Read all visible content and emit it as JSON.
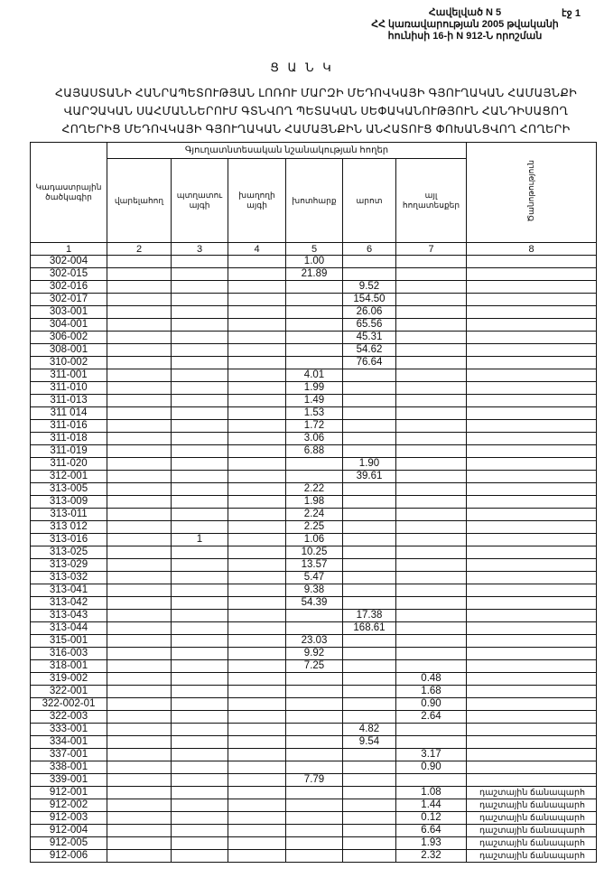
{
  "header": {
    "appendix": "Հավելված N 5",
    "line2": "ՀՀ կառավարության 2005 թվականի",
    "line3": "հունիսի 16-ի N 912-Ն որոշման",
    "page": "էջ 1"
  },
  "doc_title": "Ց Ա Ն Կ",
  "subtitle": [
    "ՀԱՅԱՍՏԱՆԻ ՀԱՆՐԱՊԵՏՈՒԹՅԱՆ ԼՈՌՈՒ ՄԱՐԶԻ ՄԵԴՈՎԿԱՅԻ ԳՅՈՒՂԱԿԱՆ ՀԱՄԱՅՆՔԻ",
    "ՎԱՐՉԱԿԱՆ ՍԱՀՄԱՆՆԵՐՈՒՄ ԳՏՆՎՈՂ ՊԵՏԱԿԱՆ ՍԵՓԱԿԱՆՈՒԹՅՈՒՆ ՀԱՆԴԻՍԱՑՈՂ",
    "ՀՈՂԵՐԻՑ ՄԵԴՈՎԿԱՅԻ ԳՅՈՒՂԱԿԱՆ ՀԱՄԱՅՆՔԻՆ ԱՆՀԱՏՈՒՑ ՓՈԽԱՆՑՎՈՂ ՀՈՂԵՐԻ"
  ],
  "table": {
    "group_header": "Գյուղատնտեսական նշանակության հողեր",
    "columns": [
      "Կադաստրային ծածկագիր",
      "վարելահող",
      "պտղատու այգի",
      "խաղողի այգի",
      "խոտհարք",
      "արոտ",
      "այլ հողատեսքեր",
      "Ծանոթություն"
    ],
    "column_numbers": [
      "1",
      "2",
      "3",
      "4",
      "5",
      "6",
      "7",
      "8"
    ],
    "rows": [
      [
        "302-004",
        "",
        "",
        "",
        "1.00",
        "",
        "",
        ""
      ],
      [
        "302-015",
        "",
        "",
        "",
        "21.89",
        "",
        "",
        ""
      ],
      [
        "302-016",
        "",
        "",
        "",
        "",
        "9.52",
        "",
        ""
      ],
      [
        "302-017",
        "",
        "",
        "",
        "",
        "154.50",
        "",
        ""
      ],
      [
        "303-001",
        "",
        "",
        "",
        "",
        "26.06",
        "",
        ""
      ],
      [
        "304-001",
        "",
        "",
        "",
        "",
        "65.56",
        "",
        ""
      ],
      [
        "306-002",
        "",
        "",
        "",
        "",
        "45.31",
        "",
        ""
      ],
      [
        "308-001",
        "",
        "",
        "",
        "",
        "54.62",
        "",
        ""
      ],
      [
        "310-002",
        "",
        "",
        "",
        "",
        "76.64",
        "",
        ""
      ],
      [
        "311-001",
        "",
        "",
        "",
        "4.01",
        "",
        "",
        ""
      ],
      [
        "311-010",
        "",
        "",
        "",
        "1.99",
        "",
        "",
        ""
      ],
      [
        "311-013",
        "",
        "",
        "",
        "1.49",
        "",
        "",
        ""
      ],
      [
        "311 014",
        "",
        "",
        "",
        "1.53",
        "",
        "",
        ""
      ],
      [
        "311-016",
        "",
        "",
        "",
        "1.72",
        "",
        "",
        ""
      ],
      [
        "311-018",
        "",
        "",
        "",
        "3.06",
        "",
        "",
        ""
      ],
      [
        "311-019",
        "",
        "",
        "",
        "6.88",
        "",
        "",
        ""
      ],
      [
        "311-020",
        "",
        "",
        "",
        "",
        "1.90",
        "",
        ""
      ],
      [
        "312-001",
        "",
        "",
        "",
        "",
        "39.61",
        "",
        ""
      ],
      [
        "313-005",
        "",
        "",
        "",
        "2.22",
        "",
        "",
        ""
      ],
      [
        "313-009",
        "",
        "",
        "",
        "1.98",
        "",
        "",
        ""
      ],
      [
        "313-011",
        "",
        "",
        "",
        "2.24",
        "",
        "",
        ""
      ],
      [
        "313 012",
        "",
        "",
        "",
        "2.25",
        "",
        "",
        ""
      ],
      [
        "313-016",
        "",
        "1",
        "",
        "1.06",
        "",
        "",
        ""
      ],
      [
        "313-025",
        "",
        "",
        "",
        "10.25",
        "",
        "",
        ""
      ],
      [
        "313-029",
        "",
        "",
        "",
        "13.57",
        "",
        "",
        ""
      ],
      [
        "313-032",
        "",
        "",
        "",
        "5.47",
        "",
        "",
        ""
      ],
      [
        "313-041",
        "",
        "",
        "",
        "9.38",
        "",
        "",
        ""
      ],
      [
        "313-042",
        "",
        "",
        "",
        "54.39",
        "",
        "",
        ""
      ],
      [
        "313-043",
        "",
        "",
        "",
        "",
        "17.38",
        "",
        ""
      ],
      [
        "313-044",
        "",
        "",
        "",
        "",
        "168.61",
        "",
        ""
      ],
      [
        "315-001",
        "",
        "",
        "",
        "23.03",
        "",
        "",
        ""
      ],
      [
        "316-003",
        "",
        "",
        "",
        "9.92",
        "",
        "",
        ""
      ],
      [
        "318-001",
        "",
        "",
        "",
        "7.25",
        "",
        "",
        ""
      ],
      [
        "319-002",
        "",
        "",
        "",
        "",
        "",
        "0.48",
        ""
      ],
      [
        "322-001",
        "",
        "",
        "",
        "",
        "",
        "1.68",
        ""
      ],
      [
        "322-002-01",
        "",
        "",
        "",
        "",
        "",
        "0.90",
        ""
      ],
      [
        "322-003",
        "",
        "",
        "",
        "",
        "",
        "2.64",
        ""
      ],
      [
        "333-001",
        "",
        "",
        "",
        "",
        "4.82",
        "",
        ""
      ],
      [
        "334-001",
        "",
        "",
        "",
        "",
        "9.54",
        "",
        ""
      ],
      [
        "337-001",
        "",
        "",
        "",
        "",
        "",
        "3.17",
        ""
      ],
      [
        "338-001",
        "",
        "",
        "",
        "",
        "",
        "0.90",
        ""
      ],
      [
        "339-001",
        "",
        "",
        "",
        "7.79",
        "",
        "",
        ""
      ],
      [
        "912-001",
        "",
        "",
        "",
        "",
        "",
        "1.08",
        "դաշտային ճանապարհ"
      ],
      [
        "912-002",
        "",
        "",
        "",
        "",
        "",
        "1.44",
        "դաշտային ճանապարհ"
      ],
      [
        "912-003",
        "",
        "",
        "",
        "",
        "",
        "0.12",
        "դաշտային ճանապարհ"
      ],
      [
        "912-004",
        "",
        "",
        "",
        "",
        "",
        "6.64",
        "դաշտային ճանապարհ"
      ],
      [
        "912-005",
        "",
        "",
        "",
        "",
        "",
        "1.93",
        "դաշտային ճանապարհ"
      ],
      [
        "912-006",
        "",
        "",
        "",
        "",
        "",
        "2.32",
        "դաշտային ճանապարհ"
      ]
    ]
  }
}
